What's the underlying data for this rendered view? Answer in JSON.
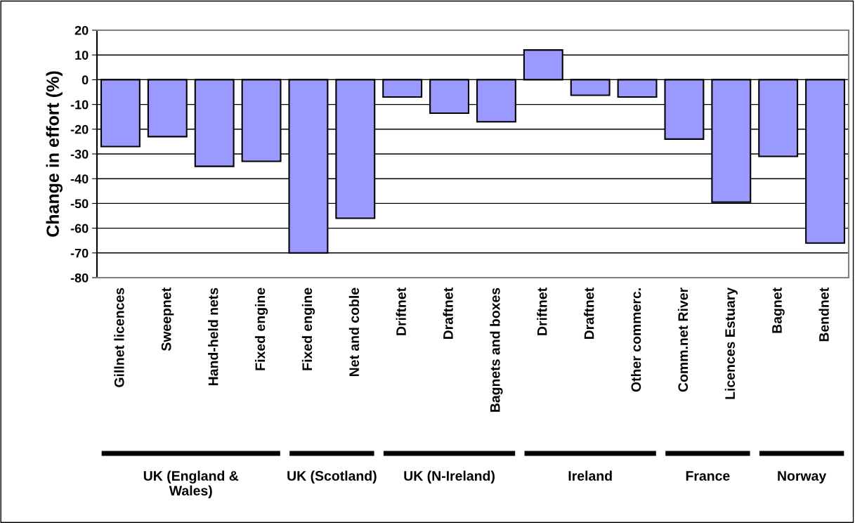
{
  "chart_data": {
    "type": "bar",
    "ylabel": "Change in effort (%)",
    "categories": [
      "Gillnet licences",
      "Sweepnet",
      "Hand-held nets",
      "Fixed engine",
      "Fixed engine",
      "Net and coble",
      "Driftnet",
      "Draftnet",
      "Bagnets and boxes",
      "Driftnet",
      "Draftnet",
      "Other commerc.",
      "Comm.net River",
      "Licences Estuary",
      "Bagnet",
      "Bendnet"
    ],
    "values": [
      -27,
      -23,
      -35,
      -33,
      -70,
      -56,
      -7,
      -13.5,
      -17,
      12,
      -6.3,
      -7,
      -24,
      -49.5,
      -31,
      -66
    ],
    "color": "#9999ff",
    "ylim": [
      -80,
      20
    ],
    "yticks": [
      -80,
      -70,
      -60,
      -50,
      -40,
      -30,
      -20,
      -10,
      0,
      10,
      20
    ],
    "grid": "y",
    "legend": false,
    "annotations": [
      "UK (England &\nWales)",
      "UK (Scotland)",
      "UK (N-Ireland)",
      "Ireland",
      "France",
      "Norway"
    ]
  }
}
